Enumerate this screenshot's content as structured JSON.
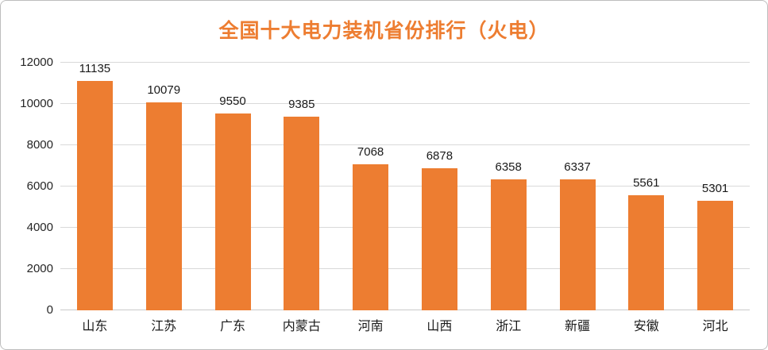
{
  "chart_data": {
    "type": "bar",
    "title": "全国十大电力装机省份排行（火电）",
    "categories": [
      "山东",
      "江苏",
      "广东",
      "内蒙古",
      "河南",
      "山西",
      "浙江",
      "新疆",
      "安徽",
      "河北"
    ],
    "values": [
      11135,
      10079,
      9550,
      9385,
      7068,
      6878,
      6358,
      6337,
      5561,
      5301
    ],
    "ylim": [
      0,
      12000
    ],
    "yticks": [
      0,
      2000,
      4000,
      6000,
      8000,
      10000,
      12000
    ],
    "xlabel": "",
    "ylabel": "",
    "grid": true,
    "legend_position": "none",
    "data_labels": true,
    "colors": {
      "bar": "#ED7D31",
      "title": "#ED7D31",
      "gridline": "#d9d9d9",
      "axis_text": "#262626"
    }
  }
}
